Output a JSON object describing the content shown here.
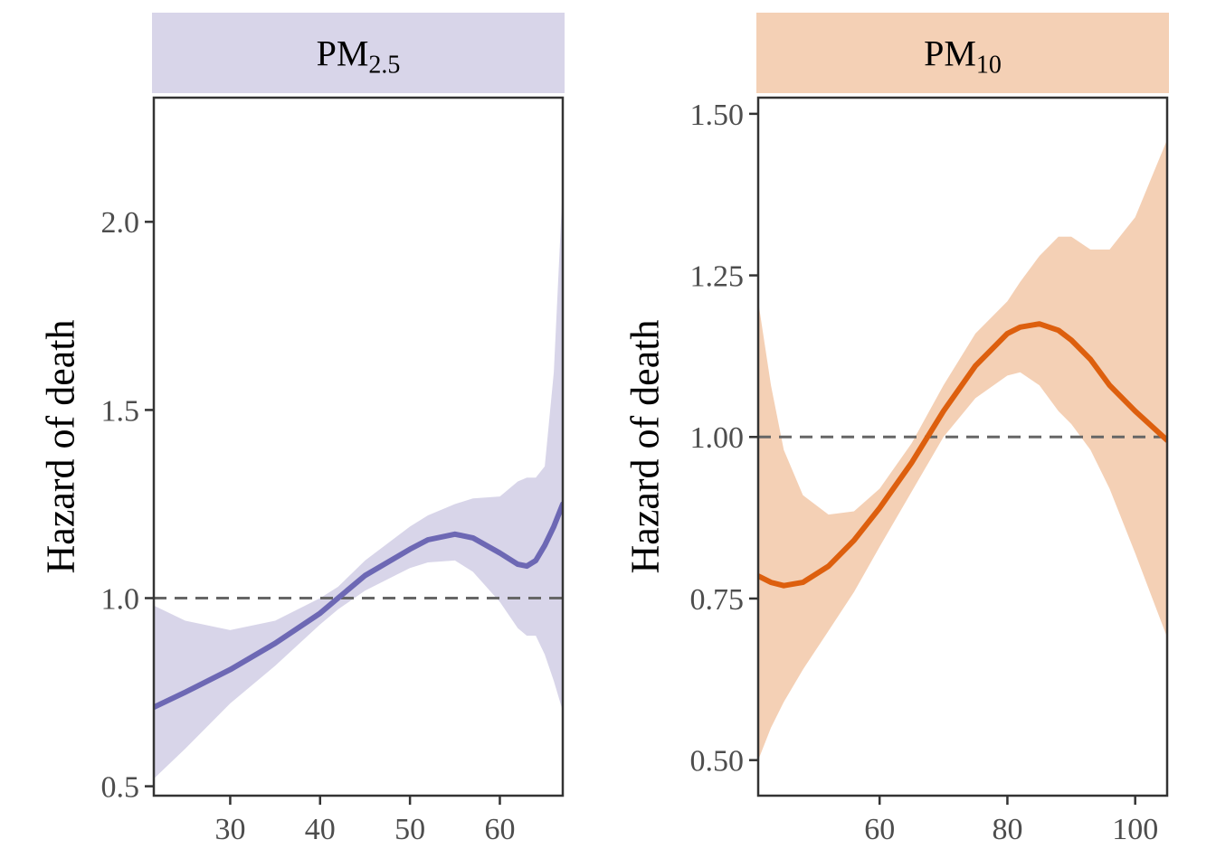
{
  "chart_data": [
    {
      "type": "line",
      "panel_label": "PM",
      "panel_label_sub": "2.5",
      "ylabel": "Hazard of death",
      "xlim": [
        21.5,
        67
      ],
      "ylim": [
        0.475,
        2.33
      ],
      "x_ticks": [
        30,
        40,
        50,
        60
      ],
      "y_ticks": [
        0.5,
        1.0,
        1.5,
        2.0
      ],
      "y_tick_labels": [
        "0.5",
        "1.0",
        "1.5",
        "2.0"
      ],
      "reference_line": 1.0,
      "colors": {
        "strip": "#d8d5e9",
        "line": "#6d68b4",
        "band": "#d8d5e9"
      },
      "series": [
        {
          "x": [
            21.5,
            25,
            30,
            35,
            40,
            42,
            45,
            50,
            52,
            55,
            57,
            60,
            62,
            63,
            64,
            65,
            66,
            67
          ],
          "y": [
            0.71,
            0.75,
            0.81,
            0.88,
            0.96,
            1.0,
            1.06,
            1.13,
            1.155,
            1.17,
            1.16,
            1.12,
            1.09,
            1.085,
            1.1,
            1.14,
            1.19,
            1.25
          ],
          "lower": [
            0.52,
            0.6,
            0.72,
            0.82,
            0.93,
            0.97,
            1.02,
            1.08,
            1.095,
            1.1,
            1.07,
            0.99,
            0.92,
            0.9,
            0.9,
            0.85,
            0.78,
            0.7
          ],
          "upper": [
            0.98,
            0.94,
            0.915,
            0.94,
            1.0,
            1.03,
            1.1,
            1.19,
            1.22,
            1.25,
            1.265,
            1.27,
            1.31,
            1.32,
            1.32,
            1.35,
            1.6,
            2.1
          ]
        }
      ]
    },
    {
      "type": "line",
      "panel_label": "PM",
      "panel_label_sub": "10",
      "ylabel": "Hazard of death",
      "xlim": [
        41,
        105
      ],
      "ylim": [
        0.445,
        1.525
      ],
      "x_ticks": [
        60,
        80,
        100
      ],
      "y_ticks": [
        0.5,
        0.75,
        1.0,
        1.25,
        1.5
      ],
      "y_tick_labels": [
        "0.50",
        "0.75",
        "1.00",
        "1.25",
        "1.50"
      ],
      "reference_line": 1.0,
      "colors": {
        "strip": "#f4d0b5",
        "line": "#dd5f0e",
        "band": "#f4d0b5"
      },
      "series": [
        {
          "x": [
            41,
            43,
            45,
            48,
            52,
            56,
            60,
            65,
            70,
            75,
            80,
            82,
            85,
            88,
            90,
            93,
            96,
            100,
            105
          ],
          "y": [
            0.785,
            0.775,
            0.77,
            0.775,
            0.8,
            0.84,
            0.89,
            0.96,
            1.04,
            1.11,
            1.16,
            1.17,
            1.175,
            1.165,
            1.15,
            1.12,
            1.08,
            1.04,
            0.995
          ],
          "lower": [
            0.5,
            0.55,
            0.59,
            0.64,
            0.7,
            0.76,
            0.83,
            0.915,
            1.0,
            1.06,
            1.095,
            1.1,
            1.08,
            1.04,
            1.02,
            0.98,
            0.92,
            0.82,
            0.69
          ],
          "upper": [
            1.21,
            1.08,
            0.98,
            0.91,
            0.88,
            0.885,
            0.92,
            0.99,
            1.08,
            1.16,
            1.21,
            1.24,
            1.28,
            1.31,
            1.31,
            1.29,
            1.29,
            1.34,
            1.46
          ]
        }
      ]
    }
  ]
}
